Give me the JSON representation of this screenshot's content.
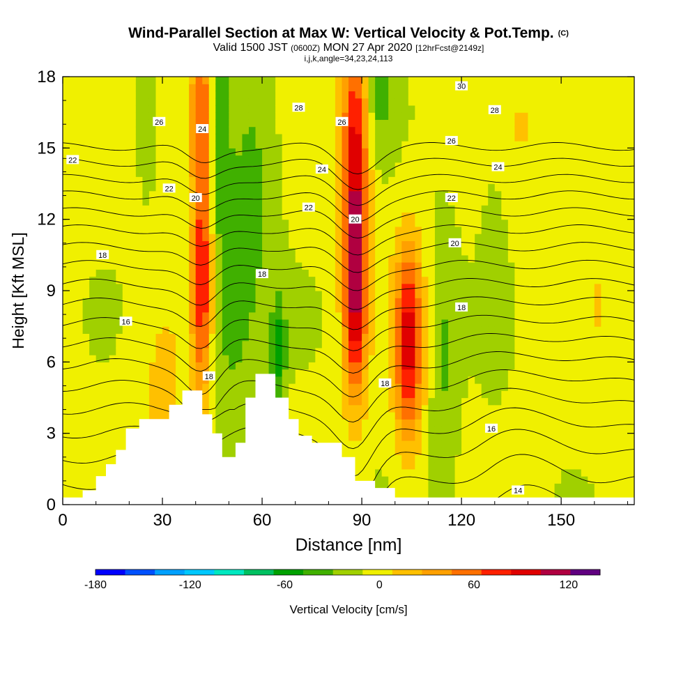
{
  "title": {
    "main": "Wind-Parallel Section at Max W: Vertical Velocity & Pot.Temp.",
    "corner": "(C)",
    "valid_prefix": "Valid 1500 JST",
    "valid_utc": "(0600Z)",
    "valid_date": "MON 27 Apr 2020",
    "forecast": "[12hrFcst@2149z]",
    "indices": "i,j,k,angle=34,23,24,113"
  },
  "colorbar": {
    "label": "Vertical Velocity [cm/s]",
    "tick_labels": [
      "-180",
      "-120",
      "-60",
      "0",
      "60",
      "120"
    ],
    "tick_values": [
      -180,
      -120,
      -60,
      0,
      60,
      120
    ],
    "min": -180,
    "max": 140,
    "step": 20,
    "colors": [
      "#0000ff",
      "#0050ff",
      "#00a0ff",
      "#00c8ff",
      "#00e8c0",
      "#00c060",
      "#00a000",
      "#40b000",
      "#a0d000",
      "#f0f000",
      "#ffc000",
      "#ffa000",
      "#ff7000",
      "#ff2000",
      "#e00000",
      "#b00040",
      "#600080"
    ]
  },
  "chart_data": {
    "type": "heatmap",
    "xlabel": "Distance [nm]",
    "ylabel": "Height [Kft MSL]",
    "xlim": [
      0,
      172
    ],
    "ylim": [
      0,
      18
    ],
    "xticks": [
      0,
      30,
      60,
      90,
      120,
      150
    ],
    "yticks": [
      0,
      3,
      6,
      9,
      12,
      15,
      18
    ],
    "updrafts": [
      {
        "x": 42,
        "y": 9.5,
        "wx": 2.2,
        "wy": 3.5,
        "peak": 100
      },
      {
        "x": 42,
        "y": 16.5,
        "wx": 3,
        "wy": 2.5,
        "peak": 70
      },
      {
        "x": 88,
        "y": 9.5,
        "wx": 2.5,
        "wy": 3.5,
        "peak": 130
      },
      {
        "x": 88,
        "y": 16,
        "wx": 3,
        "wy": 3,
        "peak": 80
      },
      {
        "x": 104,
        "y": 6.8,
        "wx": 3,
        "wy": 3,
        "peak": 105
      },
      {
        "x": 30,
        "y": 5,
        "wx": 6,
        "wy": 3,
        "peak": 20
      },
      {
        "x": 140,
        "y": 16,
        "wx": 8,
        "wy": 3,
        "peak": 15
      },
      {
        "x": 162,
        "y": 9,
        "wx": 6,
        "wy": 4,
        "peak": 12
      }
    ],
    "downdrafts": [
      {
        "x": 47,
        "y": 16,
        "wx": 2,
        "wy": 3,
        "peak": -45
      },
      {
        "x": 50,
        "y": 8,
        "wx": 6,
        "wy": 4,
        "peak": -30
      },
      {
        "x": 65,
        "y": 6.5,
        "wx": 1.5,
        "wy": 1.5,
        "peak": -55
      },
      {
        "x": 58,
        "y": 14,
        "wx": 5,
        "wy": 4,
        "peak": -25
      },
      {
        "x": 95,
        "y": 18,
        "wx": 3,
        "wy": 2,
        "peak": -35
      },
      {
        "x": 115,
        "y": 6,
        "wx": 3,
        "wy": 4,
        "peak": -25
      },
      {
        "x": 130,
        "y": 11,
        "wx": 3,
        "wy": 4,
        "peak": -15
      },
      {
        "x": 25,
        "y": 16,
        "wx": 2,
        "wy": 2,
        "peak": -20
      }
    ],
    "terrain": [
      [
        0,
        0.3
      ],
      [
        6,
        0.3
      ],
      [
        6,
        0.6
      ],
      [
        10,
        0.6
      ],
      [
        10,
        1.2
      ],
      [
        13,
        1.2
      ],
      [
        13,
        1.7
      ],
      [
        16,
        1.7
      ],
      [
        16,
        2.3
      ],
      [
        19,
        2.3
      ],
      [
        19,
        3.2
      ],
      [
        23,
        3.2
      ],
      [
        23,
        3.6
      ],
      [
        32,
        3.6
      ],
      [
        32,
        4.2
      ],
      [
        36,
        4.2
      ],
      [
        36,
        4.8
      ],
      [
        42,
        4.8
      ],
      [
        42,
        3.8
      ],
      [
        45,
        3.8
      ],
      [
        45,
        3.0
      ],
      [
        48,
        3.0
      ],
      [
        48,
        2.0
      ],
      [
        52,
        2.0
      ],
      [
        52,
        2.6
      ],
      [
        55,
        2.6
      ],
      [
        55,
        4.5
      ],
      [
        58,
        4.5
      ],
      [
        58,
        5.5
      ],
      [
        64,
        5.5
      ],
      [
        64,
        4.5
      ],
      [
        68,
        4.5
      ],
      [
        68,
        3.6
      ],
      [
        71,
        3.6
      ],
      [
        71,
        2.9
      ],
      [
        75,
        2.9
      ],
      [
        75,
        2.6
      ],
      [
        84,
        2.6
      ],
      [
        84,
        2.0
      ],
      [
        88,
        2.0
      ],
      [
        88,
        1.0
      ],
      [
        94,
        1.0
      ],
      [
        94,
        0.7
      ],
      [
        100,
        0.7
      ],
      [
        100,
        0.3
      ],
      [
        172,
        0.3
      ]
    ],
    "contour_labels": [
      {
        "text": "30",
        "x": 120,
        "y": 17.6
      },
      {
        "text": "28",
        "x": 71,
        "y": 16.7
      },
      {
        "text": "28",
        "x": 130,
        "y": 16.6
      },
      {
        "text": "26",
        "x": 29,
        "y": 16.1
      },
      {
        "text": "26",
        "x": 84,
        "y": 16.1
      },
      {
        "text": "26",
        "x": 117,
        "y": 15.3
      },
      {
        "text": "24",
        "x": 42,
        "y": 15.8
      },
      {
        "text": "24",
        "x": 78,
        "y": 14.1
      },
      {
        "text": "24",
        "x": 131,
        "y": 14.2
      },
      {
        "text": "22",
        "x": 3,
        "y": 14.5
      },
      {
        "text": "22",
        "x": 32,
        "y": 13.3
      },
      {
        "text": "22",
        "x": 74,
        "y": 12.5
      },
      {
        "text": "22",
        "x": 117,
        "y": 12.9
      },
      {
        "text": "20",
        "x": 40,
        "y": 12.9
      },
      {
        "text": "20",
        "x": 88,
        "y": 12.0
      },
      {
        "text": "20",
        "x": 118,
        "y": 11.0
      },
      {
        "text": "18",
        "x": 12,
        "y": 10.5
      },
      {
        "text": "18",
        "x": 60,
        "y": 9.7
      },
      {
        "text": "18",
        "x": 120,
        "y": 8.3
      },
      {
        "text": "18",
        "x": 44,
        "y": 5.4
      },
      {
        "text": "18",
        "x": 97,
        "y": 5.1
      },
      {
        "text": "16",
        "x": 19,
        "y": 7.7
      },
      {
        "text": "16",
        "x": 129,
        "y": 3.2
      },
      {
        "text": "14",
        "x": 137,
        "y": 0.6
      }
    ]
  }
}
